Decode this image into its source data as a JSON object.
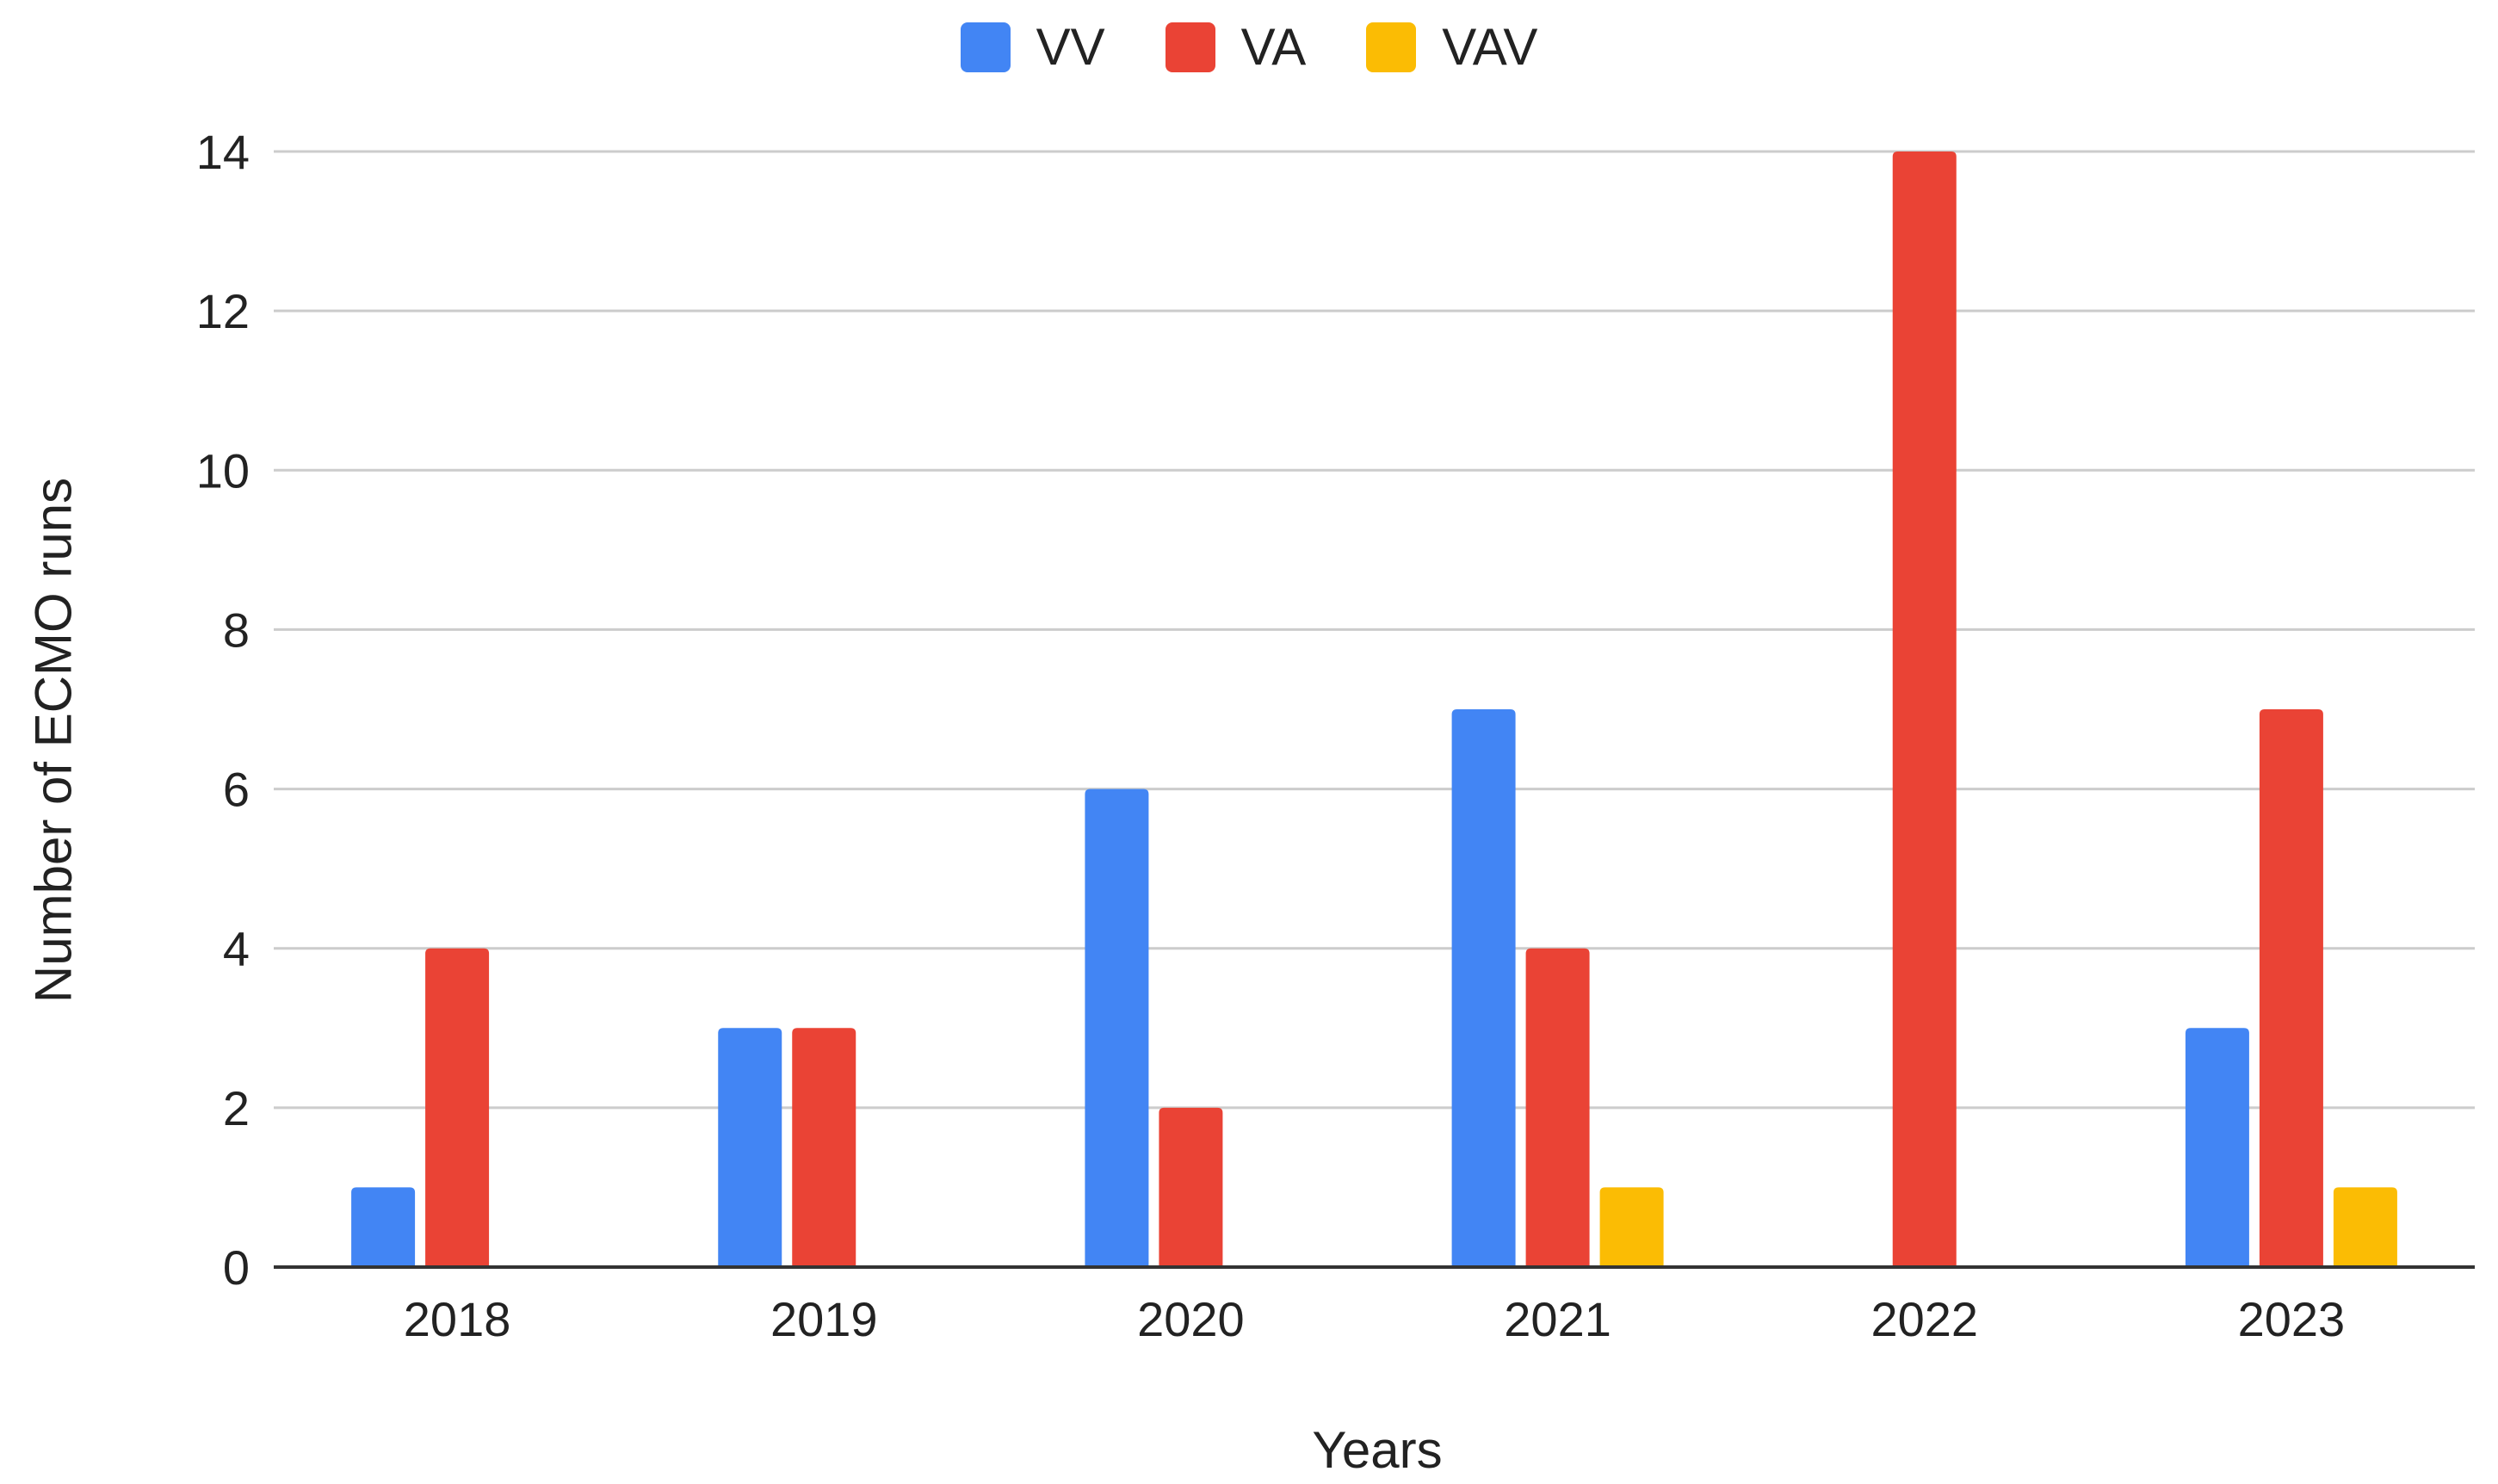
{
  "chart_data": {
    "type": "bar",
    "categories": [
      "2018",
      "2019",
      "2020",
      "2021",
      "2022",
      "2023"
    ],
    "series": [
      {
        "name": "VV",
        "color": "#4285f4",
        "values": [
          1,
          3,
          6,
          7,
          0,
          3
        ]
      },
      {
        "name": "VA",
        "color": "#ea4335",
        "values": [
          4,
          3,
          2,
          4,
          14,
          7
        ]
      },
      {
        "name": "VAV",
        "color": "#fbbc04",
        "values": [
          0,
          0,
          0,
          1,
          0,
          1
        ]
      }
    ],
    "title": "",
    "xlabel": "Years",
    "ylabel": "Number of ECMO runs",
    "ylim": [
      0,
      14
    ],
    "yticks": [
      0,
      2,
      4,
      6,
      8,
      10,
      12,
      14
    ],
    "grid": true,
    "legend_position": "top-center"
  }
}
